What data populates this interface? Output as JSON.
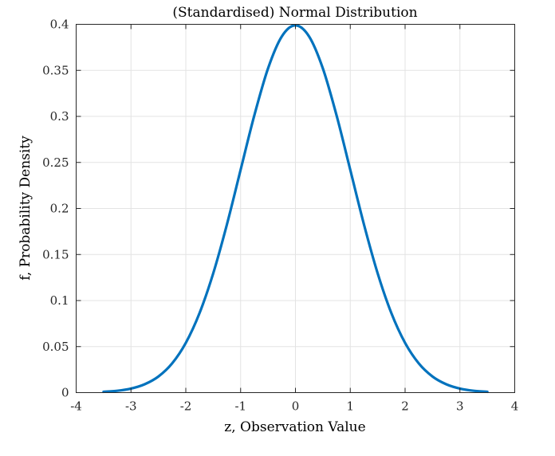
{
  "chart_data": {
    "type": "line",
    "title": "(Standardised) Normal Distribution",
    "xlabel": "z, Observation Value",
    "ylabel": "f, Probability Density",
    "xlim": [
      -4,
      4
    ],
    "ylim": [
      0,
      0.4
    ],
    "xticks": [
      -4,
      -3,
      -2,
      -1,
      0,
      1,
      2,
      3,
      4
    ],
    "xtick_labels": [
      "-4",
      "-3",
      "-2",
      "-1",
      "0",
      "1",
      "2",
      "3",
      "4"
    ],
    "yticks": [
      0,
      0.05,
      0.1,
      0.15,
      0.2,
      0.25,
      0.3,
      0.35,
      0.4
    ],
    "ytick_labels": [
      "0",
      "0.05",
      "0.1",
      "0.15",
      "0.2",
      "0.25",
      "0.3",
      "0.35",
      "0.4"
    ],
    "grid": true,
    "series": [
      {
        "color": "#0072bd",
        "x": [
          -3.5,
          -3.25,
          -3.0,
          -2.75,
          -2.5,
          -2.25,
          -2.0,
          -1.75,
          -1.5,
          -1.25,
          -1.0,
          -0.75,
          -0.5,
          -0.25,
          0.0,
          0.25,
          0.5,
          0.75,
          1.0,
          1.25,
          1.5,
          1.75,
          2.0,
          2.25,
          2.5,
          2.75,
          3.0,
          3.25,
          3.5
        ],
        "y": [
          0.0009,
          0.002,
          0.0044,
          0.0091,
          0.0175,
          0.0317,
          0.054,
          0.0863,
          0.1295,
          0.1826,
          0.242,
          0.3011,
          0.3521,
          0.3867,
          0.3989,
          0.3867,
          0.3521,
          0.3011,
          0.242,
          0.1826,
          0.1295,
          0.0863,
          0.054,
          0.0317,
          0.0175,
          0.0091,
          0.0044,
          0.002,
          0.0009
        ]
      }
    ]
  }
}
